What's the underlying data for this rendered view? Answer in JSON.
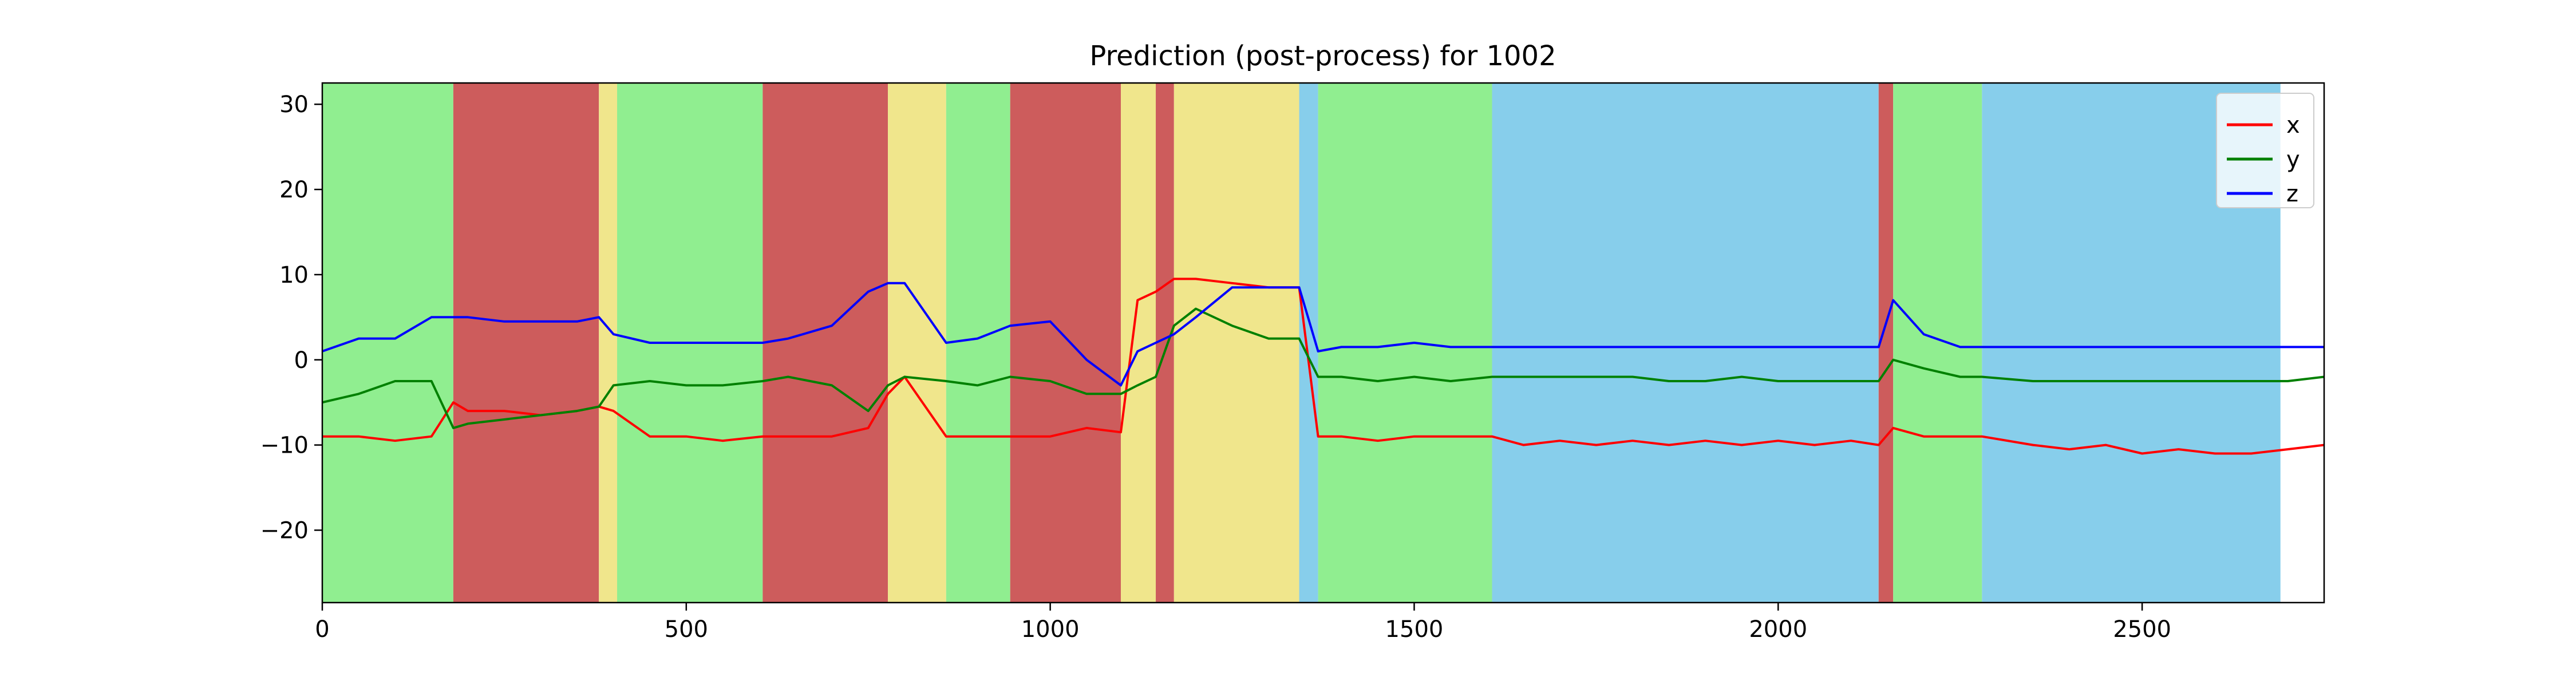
{
  "chart_data": {
    "type": "line",
    "title": "Prediction (post-process) for 1002",
    "xlabel": "",
    "ylabel": "",
    "xlim": [
      0,
      2750
    ],
    "ylim": [
      -28.5,
      32.5
    ],
    "x_ticks": [
      0,
      500,
      1000,
      1500,
      2000,
      2500
    ],
    "y_ticks": [
      -20,
      -10,
      0,
      10,
      20,
      30
    ],
    "y_tick_labels": [
      "−20",
      "−10",
      "0",
      "10",
      "20",
      "30"
    ],
    "legend": {
      "position": "top-right",
      "entries": [
        "x",
        "y",
        "z"
      ]
    },
    "grid": false,
    "colors": {
      "x": "#ff0000",
      "y": "#008000",
      "z": "#0000ff",
      "green_band": "#90ee90",
      "red_band": "#cd5c5c",
      "yellow_band": "#f0e68c",
      "blue_band": "#87ceeb"
    },
    "background_segments": [
      {
        "start": 0,
        "end": 180,
        "color": "green_band"
      },
      {
        "start": 180,
        "end": 380,
        "color": "red_band"
      },
      {
        "start": 380,
        "end": 405,
        "color": "yellow_band"
      },
      {
        "start": 405,
        "end": 605,
        "color": "green_band"
      },
      {
        "start": 605,
        "end": 777,
        "color": "red_band"
      },
      {
        "start": 777,
        "end": 857,
        "color": "yellow_band"
      },
      {
        "start": 857,
        "end": 945,
        "color": "green_band"
      },
      {
        "start": 945,
        "end": 1097,
        "color": "red_band"
      },
      {
        "start": 1097,
        "end": 1145,
        "color": "yellow_band"
      },
      {
        "start": 1145,
        "end": 1170,
        "color": "red_band"
      },
      {
        "start": 1170,
        "end": 1342,
        "color": "yellow_band"
      },
      {
        "start": 1342,
        "end": 1368,
        "color": "blue_band"
      },
      {
        "start": 1368,
        "end": 1607,
        "color": "green_band"
      },
      {
        "start": 1607,
        "end": 2138,
        "color": "blue_band"
      },
      {
        "start": 2138,
        "end": 2158,
        "color": "red_band"
      },
      {
        "start": 2158,
        "end": 2280,
        "color": "green_band"
      },
      {
        "start": 2280,
        "end": 2690,
        "color": "blue_band"
      }
    ],
    "x_values": [
      0,
      50,
      100,
      150,
      180,
      200,
      250,
      300,
      350,
      380,
      400,
      450,
      500,
      550,
      605,
      640,
      700,
      750,
      777,
      800,
      857,
      900,
      945,
      1000,
      1050,
      1097,
      1120,
      1145,
      1170,
      1200,
      1250,
      1300,
      1342,
      1368,
      1400,
      1450,
      1500,
      1550,
      1607,
      1650,
      1700,
      1750,
      1800,
      1850,
      1900,
      1950,
      2000,
      2050,
      2100,
      2138,
      2158,
      2200,
      2250,
      2280,
      2350,
      2400,
      2450,
      2500,
      2550,
      2600,
      2650,
      2700,
      2750
    ],
    "series": [
      {
        "name": "x",
        "values": [
          -9,
          -9,
          -9.5,
          -9,
          -5,
          -6,
          -6,
          -6.5,
          -6,
          -5.5,
          -6,
          -9,
          -9,
          -9.5,
          -9,
          -9,
          -9,
          -8,
          -4,
          -2,
          -9,
          -9,
          -9,
          -9,
          -8,
          -8.5,
          7,
          8,
          9.5,
          9.5,
          9,
          8.5,
          8.5,
          -9,
          -9,
          -9.5,
          -9,
          -9,
          -9,
          -10,
          -9.5,
          -10,
          -9.5,
          -10,
          -9.5,
          -10,
          -9.5,
          -10,
          -9.5,
          -10,
          -8,
          -9,
          -9,
          -9,
          -10,
          -10.5,
          -10,
          -11,
          -10.5,
          -11,
          -11,
          -10.5,
          -10
        ]
      },
      {
        "name": "y",
        "values": [
          -5,
          -4,
          -2.5,
          -2.5,
          -8,
          -7.5,
          -7,
          -6.5,
          -6,
          -5.5,
          -3,
          -2.5,
          -3,
          -3,
          -2.5,
          -2,
          -3,
          -6,
          -3,
          -2,
          -2.5,
          -3,
          -2,
          -2.5,
          -4,
          -4,
          -3,
          -2,
          4,
          6,
          4,
          2.5,
          2.5,
          -2,
          -2,
          -2.5,
          -2,
          -2.5,
          -2,
          -2,
          -2,
          -2,
          -2,
          -2.5,
          -2.5,
          -2,
          -2.5,
          -2.5,
          -2.5,
          -2.5,
          0,
          -1,
          -2,
          -2,
          -2.5,
          -2.5,
          -2.5,
          -2.5,
          -2.5,
          -2.5,
          -2.5,
          -2.5,
          -2
        ]
      },
      {
        "name": "z",
        "values": [
          1,
          2.5,
          2.5,
          5,
          5,
          5,
          4.5,
          4.5,
          4.5,
          5,
          3,
          2,
          2,
          2,
          2,
          2.5,
          4,
          8,
          9,
          9,
          2,
          2.5,
          4,
          4.5,
          0,
          -3,
          1,
          2,
          3,
          5,
          8.5,
          8.5,
          8.5,
          1,
          1.5,
          1.5,
          2,
          1.5,
          1.5,
          1.5,
          1.5,
          1.5,
          1.5,
          1.5,
          1.5,
          1.5,
          1.5,
          1.5,
          1.5,
          1.5,
          7,
          3,
          1.5,
          1.5,
          1.5,
          1.5,
          1.5,
          1.5,
          1.5,
          1.5,
          1.5,
          1.5,
          1.5
        ]
      }
    ]
  }
}
